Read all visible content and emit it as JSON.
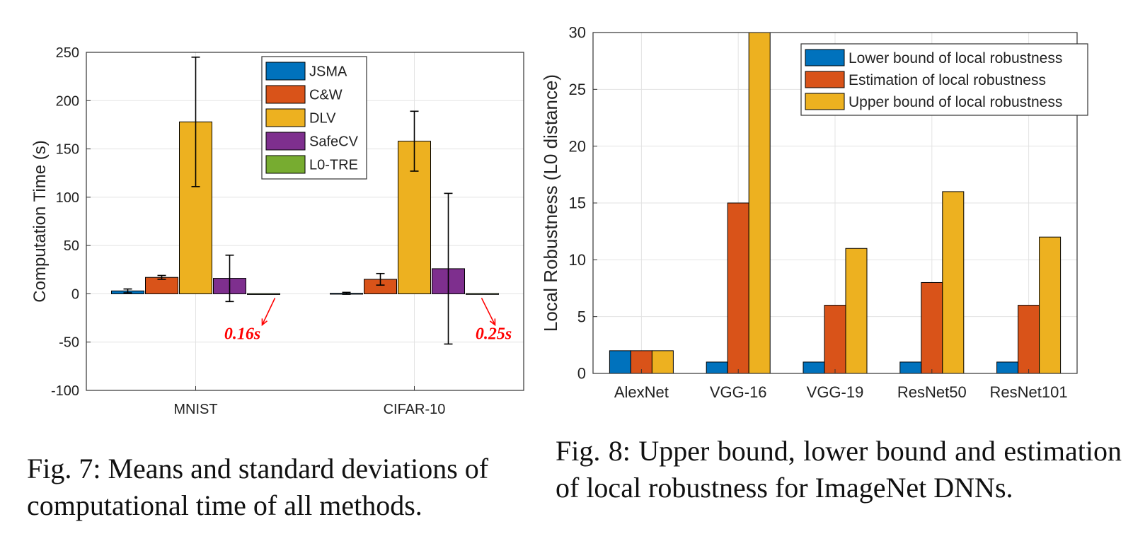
{
  "chart_data": [
    {
      "type": "bar",
      "title": "",
      "xlabel": "",
      "ylabel": "Computation Time (s)",
      "ylim": [
        -100,
        250
      ],
      "yticks": [
        -100,
        -50,
        0,
        50,
        100,
        150,
        200,
        250
      ],
      "grid": true,
      "legend_position": "top-center",
      "categories": [
        "MNIST",
        "CIFAR-10"
      ],
      "series": [
        {
          "name": "JSMA",
          "color": "#0072BD",
          "values": [
            3,
            0.5
          ],
          "errors": [
            2,
            1
          ]
        },
        {
          "name": "C&W",
          "color": "#D95319",
          "values": [
            17,
            15
          ],
          "errors": [
            2,
            6
          ]
        },
        {
          "name": "DLV",
          "color": "#EDB120",
          "values": [
            178,
            158
          ],
          "errors": [
            67,
            31
          ]
        },
        {
          "name": "SafeCV",
          "color": "#7E2F8E",
          "values": [
            16,
            26
          ],
          "errors": [
            24,
            78
          ]
        },
        {
          "name": "L0-TRE",
          "color": "#77AC30",
          "values": [
            0.16,
            0.25
          ],
          "errors": [
            0,
            0
          ]
        }
      ],
      "annotations": [
        {
          "text": "0.16s",
          "category": "MNIST",
          "series": "L0-TRE",
          "color": "#FF0000"
        },
        {
          "text": "0.25s",
          "category": "CIFAR-10",
          "series": "L0-TRE",
          "color": "#FF0000"
        }
      ]
    },
    {
      "type": "bar",
      "title": "",
      "xlabel": "",
      "ylabel": "Local Robustness (L0 distance)",
      "ylim": [
        0,
        30
      ],
      "yticks": [
        0,
        5,
        10,
        15,
        20,
        25,
        30
      ],
      "grid": true,
      "legend_position": "top-right",
      "categories": [
        "AlexNet",
        "VGG-16",
        "VGG-19",
        "ResNet50",
        "ResNet101"
      ],
      "series": [
        {
          "name": "Lower bound of local robustness",
          "color": "#0072BD",
          "values": [
            2,
            1,
            1,
            1,
            1
          ]
        },
        {
          "name": "Estimation of local robustness",
          "color": "#D95319",
          "values": [
            2,
            15,
            6,
            8,
            6
          ]
        },
        {
          "name": "Upper bound of local robustness",
          "color": "#EDB120",
          "values": [
            2,
            30,
            11,
            16,
            12
          ]
        }
      ]
    }
  ],
  "captions": {
    "fig7": "Fig. 7: Means and standard deviations of computational time of all methods.",
    "fig8": "Fig. 8: Upper bound, lower bound and estimation of local robustness for ImageNet DNNs."
  }
}
